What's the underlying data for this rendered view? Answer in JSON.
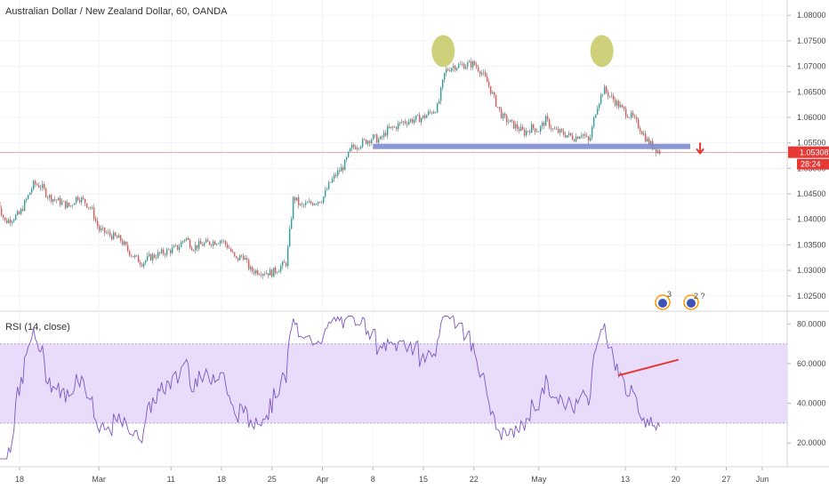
{
  "chart_data": [
    {
      "type": "candlestick",
      "title": "Australian Dollar / New Zealand Dollar, 60, OANDA",
      "ylim": [
        1.022,
        1.083
      ],
      "y_ticks": [
        "1.08000",
        "1.07500",
        "1.07000",
        "1.06500",
        "1.06000",
        "1.05500",
        "1.05000",
        "1.04500",
        "1.04000",
        "1.03500",
        "1.03000",
        "1.02500"
      ],
      "y_tick_values": [
        1.08,
        1.075,
        1.07,
        1.065,
        1.06,
        1.055,
        1.05,
        1.045,
        1.04,
        1.035,
        1.03,
        1.025
      ],
      "current_price": {
        "label": "1.05308",
        "value": 1.05308,
        "countdown": "28:24",
        "color": "#e53935"
      },
      "series_path": [
        [
          "Feb 15",
          1.0435
        ],
        [
          "Feb 16",
          1.0395
        ],
        [
          "Feb 18",
          1.041
        ],
        [
          "Feb 19",
          1.044
        ],
        [
          "Feb 20",
          1.047
        ],
        [
          "Feb 21",
          1.0465
        ],
        [
          "Feb 22",
          1.0445
        ],
        [
          "Feb 25",
          1.0425
        ],
        [
          "Feb 26",
          1.0445
        ],
        [
          "Feb 27",
          1.0435
        ],
        [
          "Feb 28",
          1.042
        ],
        [
          "Mar 1",
          1.038
        ],
        [
          "Mar 4",
          1.036
        ],
        [
          "Mar 5",
          1.034
        ],
        [
          "Mar 6",
          1.0325
        ],
        [
          "Mar 7",
          1.0315
        ],
        [
          "Mar 8",
          1.0325
        ],
        [
          "Mar 11",
          1.034
        ],
        [
          "Mar 12",
          1.0345
        ],
        [
          "Mar 13",
          1.0365
        ],
        [
          "Mar 14",
          1.0345
        ],
        [
          "Mar 15",
          1.035
        ],
        [
          "Mar 18",
          1.036
        ],
        [
          "Mar 19",
          1.0345
        ],
        [
          "Mar 20",
          1.032
        ],
        [
          "Mar 21",
          1.033
        ],
        [
          "Mar 22",
          1.03
        ],
        [
          "Mar 25",
          1.0295
        ],
        [
          "Mar 26",
          1.0305
        ],
        [
          "Mar 27",
          1.0315
        ],
        [
          "Mar 28",
          1.0445
        ],
        [
          "Mar 29",
          1.0425
        ],
        [
          "Apr 1",
          1.044
        ],
        [
          "Apr 2",
          1.047
        ],
        [
          "Apr 3",
          1.049
        ],
        [
          "Apr 4",
          1.0505
        ],
        [
          "Apr 5",
          1.054
        ],
        [
          "Apr 8",
          1.056
        ],
        [
          "Apr 9",
          1.0555
        ],
        [
          "Apr 10",
          1.0575
        ],
        [
          "Apr 11",
          1.058
        ],
        [
          "Apr 12",
          1.059
        ],
        [
          "Apr 15",
          1.06
        ],
        [
          "Apr 16",
          1.061
        ],
        [
          "Apr 17",
          1.062
        ],
        [
          "Apr 18",
          1.069
        ],
        [
          "Apr 19",
          1.07
        ],
        [
          "Apr 22",
          1.0705
        ],
        [
          "Apr 23",
          1.069
        ],
        [
          "Apr 24",
          1.0665
        ],
        [
          "Apr 25",
          1.063
        ],
        [
          "Apr 26",
          1.06
        ],
        [
          "Apr 29",
          1.057
        ],
        [
          "Apr 30",
          1.058
        ],
        [
          "May 1",
          1.0575
        ],
        [
          "May 2",
          1.0595
        ],
        [
          "May 3",
          1.0575
        ],
        [
          "May 6",
          1.056
        ],
        [
          "May 7",
          1.057
        ],
        [
          "May 8",
          1.055
        ],
        [
          "May 9",
          1.062
        ],
        [
          "May 10",
          1.0655
        ],
        [
          "May 13",
          1.061
        ],
        [
          "May 14",
          1.06
        ],
        [
          "May 15",
          1.058
        ],
        [
          "May 16",
          1.0555
        ],
        [
          "May 17",
          1.054
        ],
        [
          "May 18",
          1.053
        ]
      ],
      "drawings": {
        "support_level": 1.0543,
        "support_color": "#7986cb",
        "peak_markers_color": "#b6b832",
        "arrow_color": "#e53935"
      }
    },
    {
      "type": "line",
      "title": "RSI (14, close)",
      "ylim": [
        8,
        86
      ],
      "band": [
        30,
        70
      ],
      "band_color": "#e9dcfb",
      "line_color": "#7e57c2",
      "y_ticks": [
        "80.0000",
        "60.0000",
        "40.0000",
        "20.0000"
      ],
      "y_tick_values": [
        80,
        60,
        40,
        20
      ],
      "trendline": {
        "from_rsi": 54,
        "to_rsi": 62,
        "color": "#e53935"
      }
    }
  ],
  "x_axis": {
    "labels": [
      "18",
      "Mar",
      "11",
      "18",
      "25",
      "Apr",
      "8",
      "15",
      "22",
      "May",
      "13",
      "20",
      "27",
      "Jun"
    ]
  },
  "events": [
    {
      "icon": "event-icon",
      "count": "3"
    },
    {
      "icon": "event-icon",
      "count": "2 ?"
    }
  ]
}
